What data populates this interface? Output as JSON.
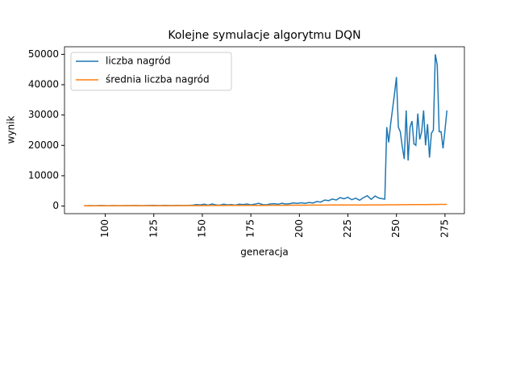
{
  "chart_data": {
    "type": "line",
    "title": "Kolejne symulacje algorytmu DQN",
    "x_label": "generacja",
    "y_label": "wynik",
    "x": [
      89,
      92,
      95,
      98,
      101,
      104,
      107,
      110,
      113,
      116,
      119,
      122,
      125,
      128,
      131,
      134,
      137,
      140,
      143,
      145,
      147,
      149,
      151,
      153,
      155,
      157,
      159,
      161,
      163,
      165,
      167,
      169,
      171,
      173,
      175,
      177,
      179,
      181,
      183,
      185,
      187,
      189,
      191,
      193,
      195,
      197,
      199,
      201,
      203,
      205,
      207,
      209,
      211,
      213,
      215,
      217,
      219,
      221,
      223,
      225,
      227,
      229,
      231,
      233,
      235,
      237,
      239,
      241,
      243,
      244,
      245,
      246,
      247,
      248,
      249,
      250,
      251,
      252,
      253,
      254,
      255,
      256,
      257,
      258,
      259,
      260,
      261,
      262,
      263,
      264,
      265,
      266,
      267,
      268,
      269,
      270,
      271,
      272,
      273,
      274,
      275,
      276
    ],
    "series": [
      {
        "name": "liczba nagród",
        "color": "#1f77b4",
        "values": [
          100,
          150,
          120,
          180,
          140,
          160,
          130,
          170,
          150,
          190,
          140,
          180,
          200,
          160,
          210,
          170,
          220,
          190,
          230,
          300,
          500,
          400,
          600,
          300,
          700,
          400,
          300,
          600,
          400,
          500,
          300,
          600,
          500,
          700,
          400,
          600,
          900,
          500,
          400,
          700,
          800,
          600,
          900,
          700,
          800,
          1000,
          900,
          1100,
          900,
          1200,
          1000,
          1500,
          1300,
          2000,
          1800,
          2300,
          2000,
          2800,
          2400,
          2900,
          2100,
          2600,
          1900,
          2800,
          3400,
          2200,
          3300,
          2600,
          2400,
          2300,
          26000,
          21000,
          27000,
          32000,
          37000,
          42500,
          26000,
          24500,
          19500,
          15500,
          31500,
          15000,
          26000,
          28000,
          20500,
          20000,
          30500,
          22000,
          24500,
          31500,
          20000,
          27000,
          16000,
          24000,
          25000,
          50000,
          46500,
          24500,
          24500,
          19000,
          25000,
          31500
        ]
      },
      {
        "name": "średnia liczba nagród",
        "color": "#ff7f0e",
        "values": [
          100,
          105,
          110,
          112,
          115,
          118,
          120,
          122,
          125,
          128,
          130,
          132,
          135,
          138,
          140,
          143,
          145,
          148,
          150,
          155,
          160,
          165,
          170,
          175,
          180,
          185,
          190,
          195,
          200,
          205,
          210,
          215,
          220,
          225,
          230,
          235,
          240,
          245,
          250,
          255,
          260,
          265,
          270,
          275,
          280,
          285,
          290,
          295,
          300,
          305,
          310,
          315,
          320,
          325,
          330,
          335,
          340,
          345,
          350,
          355,
          360,
          365,
          370,
          375,
          380,
          385,
          390,
          395,
          400,
          405,
          410,
          415,
          420,
          425,
          430,
          435,
          440,
          445,
          450,
          455,
          460,
          465,
          470,
          475,
          480,
          485,
          490,
          495,
          500,
          505,
          510,
          515,
          520,
          525,
          530,
          535,
          540,
          545,
          550,
          555,
          560,
          565
        ]
      }
    ],
    "xlim": [
      79,
      285
    ],
    "ylim": [
      -2500,
      52500
    ],
    "xticks": [
      100,
      125,
      150,
      175,
      200,
      225,
      250,
      275
    ],
    "yticks": [
      0,
      10000,
      20000,
      30000,
      40000,
      50000
    ],
    "legend": "upper left"
  }
}
